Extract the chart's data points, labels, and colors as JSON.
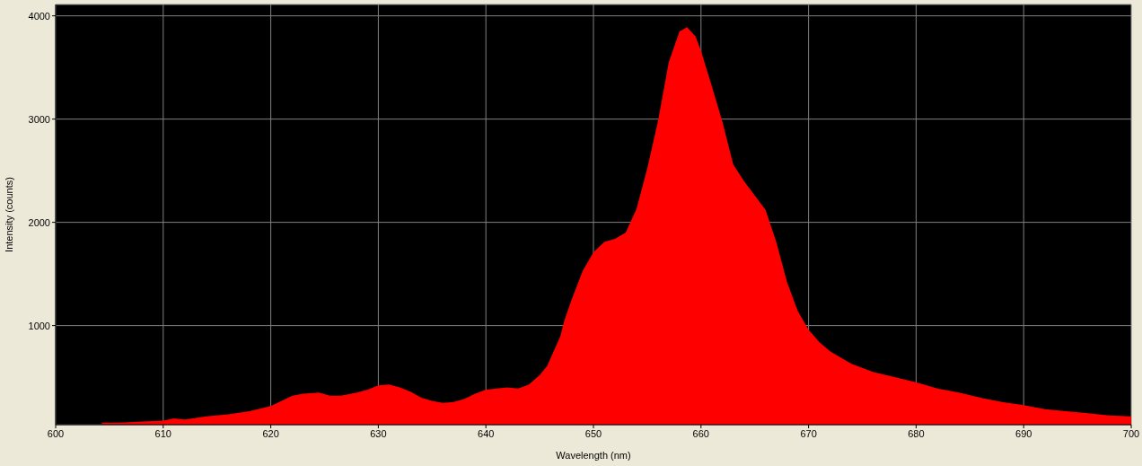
{
  "chart_data": {
    "type": "area",
    "xlabel": "Wavelength (nm)",
    "ylabel": "Intensity (counts)",
    "x": [
      604.3,
      606,
      608,
      610,
      611,
      612,
      614,
      616,
      618,
      620,
      621,
      622,
      623,
      624.5,
      625.5,
      626.5,
      628,
      629,
      630,
      631,
      632,
      633,
      634,
      635,
      636,
      637,
      638,
      639,
      640,
      641,
      642,
      643,
      644,
      645,
      645.7,
      646.3,
      646.9,
      647.3,
      648,
      649,
      650,
      651,
      652,
      653,
      654,
      655,
      656,
      657,
      658,
      658.7,
      659.5,
      660,
      661,
      662,
      663,
      664,
      665,
      666,
      667,
      668,
      669,
      670,
      671,
      672,
      674,
      676,
      678,
      680,
      682,
      684,
      686,
      688,
      690,
      692,
      694,
      696,
      698,
      700
    ],
    "series": [
      {
        "color": "#ff0000",
        "values": [
          60,
          60,
          70,
          80,
          100,
          90,
          120,
          140,
          170,
          220,
          270,
          320,
          340,
          350,
          320,
          320,
          350,
          380,
          420,
          430,
          400,
          360,
          300,
          270,
          250,
          260,
          290,
          340,
          380,
          390,
          400,
          390,
          430,
          520,
          610,
          750,
          890,
          1050,
          1260,
          1530,
          1710,
          1810,
          1840,
          1900,
          2130,
          2520,
          2980,
          3550,
          3850,
          3890,
          3800,
          3660,
          3320,
          2970,
          2560,
          2400,
          2260,
          2120,
          1810,
          1420,
          1140,
          960,
          840,
          750,
          630,
          550,
          500,
          450,
          390,
          350,
          300,
          260,
          230,
          190,
          170,
          150,
          130,
          120
        ]
      }
    ],
    "xlim": [
      600,
      700
    ],
    "xticks": [
      600,
      610,
      620,
      630,
      640,
      650,
      660,
      670,
      680,
      690,
      700
    ],
    "ylim": [
      40,
      4110
    ],
    "yticks": [
      1000,
      2000,
      3000,
      4000
    ],
    "grid": true
  }
}
